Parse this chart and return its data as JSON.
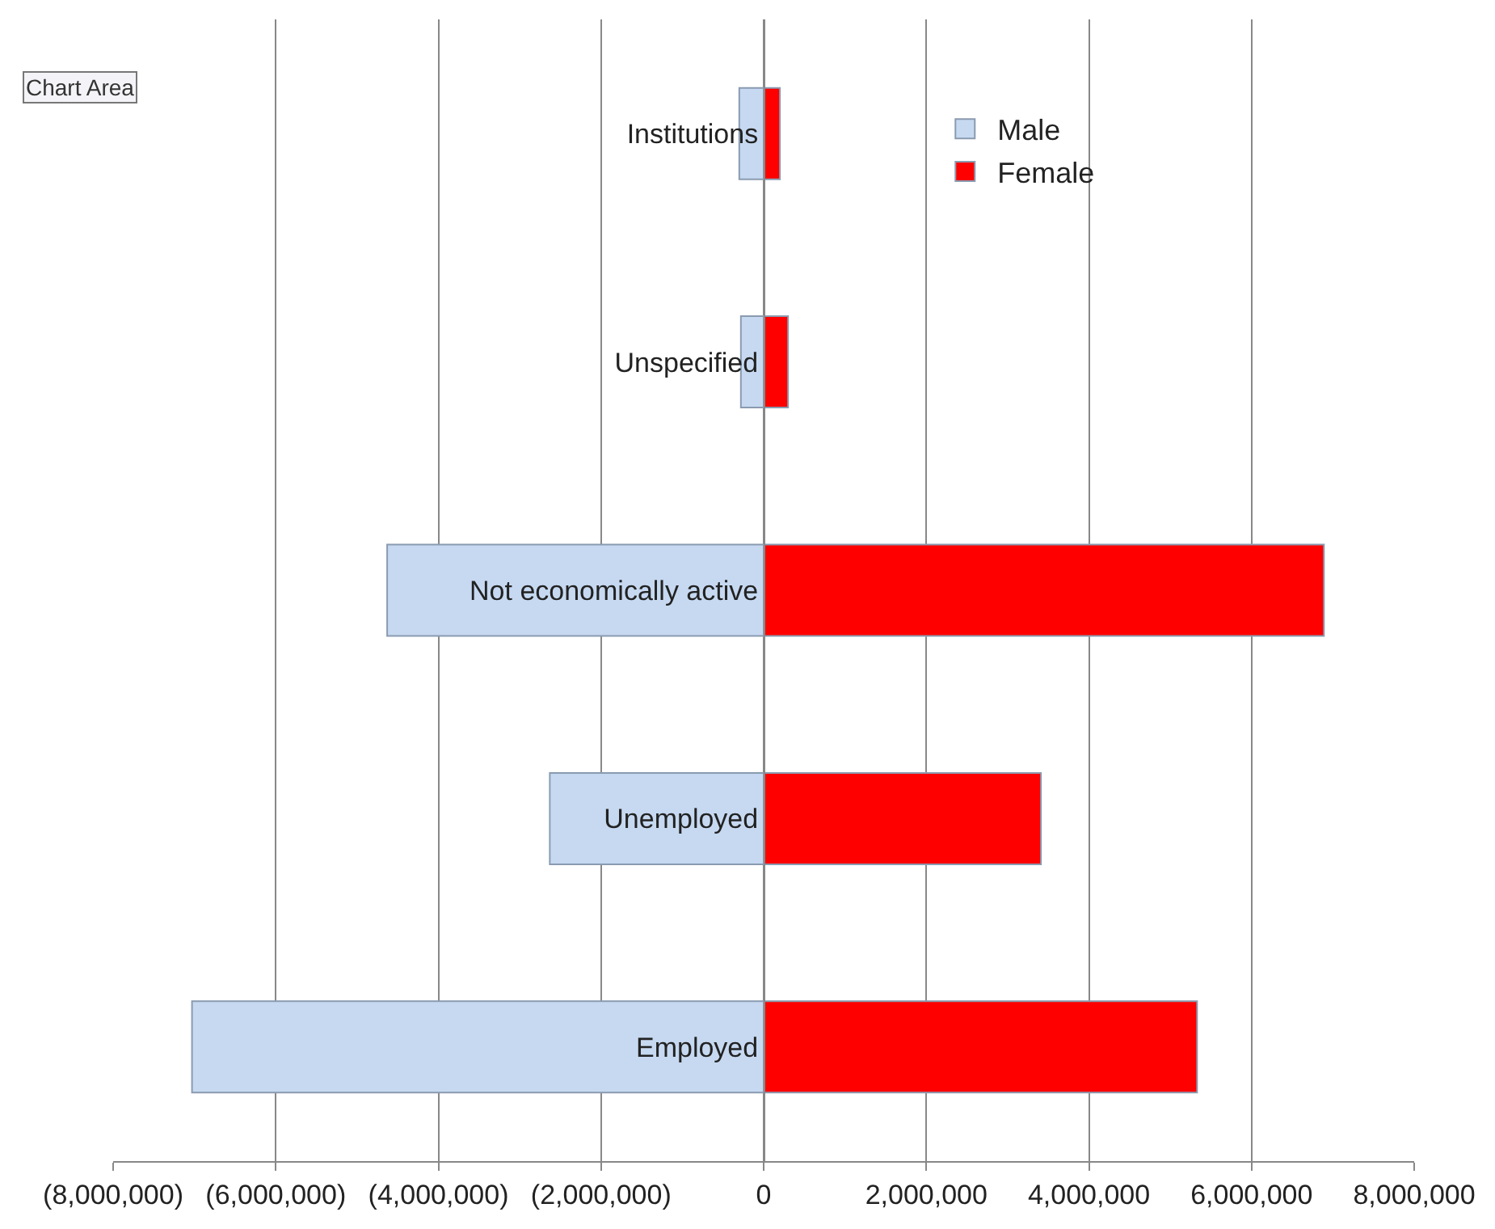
{
  "chart_data": {
    "type": "bar",
    "orientation": "horizontal",
    "stacked": true,
    "categories": [
      "Institutions",
      "Unspecified",
      "Not economically active",
      "Unemployed",
      "Employed"
    ],
    "series": [
      {
        "name": "Male",
        "color": "#c6d9f1",
        "values": [
          -300000,
          -280000,
          -4630000,
          -2630000,
          -7030000
        ]
      },
      {
        "name": "Female",
        "color": "#ff0000",
        "values": [
          200000,
          300000,
          6890000,
          3410000,
          5330000
        ]
      }
    ],
    "xlim": [
      -8000000,
      8000000
    ],
    "xticks": [
      {
        "value": -8000000,
        "label": "(8,000,000)"
      },
      {
        "value": -6000000,
        "label": "(6,000,000)"
      },
      {
        "value": -4000000,
        "label": "(4,000,000)"
      },
      {
        "value": -2000000,
        "label": "(2,000,000)"
      },
      0,
      {
        "value": 2000000,
        "label": "2,000,000"
      },
      {
        "value": 4000000,
        "label": "4,000,000"
      },
      {
        "value": 6000000,
        "label": "6,000,000"
      },
      {
        "value": 8000000,
        "label": "8,000,000"
      }
    ],
    "grid": "x",
    "legend": "top right",
    "annotations": [
      "Chart Area"
    ]
  }
}
